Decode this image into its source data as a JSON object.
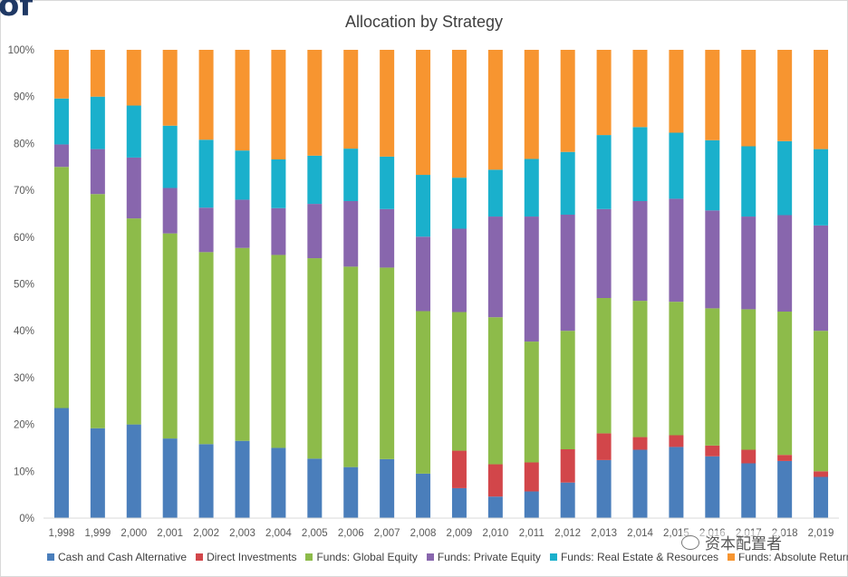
{
  "chart_data": {
    "type": "bar",
    "stacked": true,
    "title": "Allocation by Strategy",
    "categories": [
      "1,998",
      "1,999",
      "2,000",
      "2,001",
      "2,002",
      "2,003",
      "2,004",
      "2,005",
      "2,006",
      "2,007",
      "2,008",
      "2,009",
      "2,010",
      "2,011",
      "2,012",
      "2,013",
      "2,014",
      "2,015",
      "2,016",
      "2,017",
      "2,018",
      "2,019"
    ],
    "ylim": [
      0,
      100
    ],
    "yticks": [
      "0%",
      "10%",
      "20%",
      "30%",
      "40%",
      "50%",
      "60%",
      "70%",
      "80%",
      "90%",
      "100%"
    ],
    "grid": false,
    "legend_position": "bottom",
    "series": [
      {
        "name": "Cash and Cash Alternative",
        "color": "#4a7ebb",
        "values": [
          23.5,
          19.2,
          20,
          17,
          15.8,
          16.5,
          15,
          12.7,
          10.9,
          12.6,
          9.5,
          6.4,
          4.6,
          5.7,
          7.6,
          12.4,
          14.6,
          15.2,
          13.2,
          11.7,
          12.2,
          8.8
        ]
      },
      {
        "name": "Direct Investments",
        "color": "#d2464a",
        "values": [
          0,
          0,
          0,
          0,
          0,
          0,
          0,
          0,
          0,
          0,
          0,
          8,
          6.9,
          6.2,
          7.1,
          5.7,
          2.7,
          2.5,
          2.3,
          2.9,
          1.3,
          1.2
        ]
      },
      {
        "name": "Funds: Global Equity",
        "color": "#8dbb4a",
        "values": [
          51.5,
          50,
          44,
          43.8,
          41,
          41.2,
          41.2,
          42.8,
          42.8,
          40.9,
          34.7,
          29.6,
          31.4,
          25.8,
          25.3,
          28.9,
          29.1,
          28.5,
          29.3,
          30,
          30.6,
          30
        ]
      },
      {
        "name": "Funds: Private Equity",
        "color": "#8866ad",
        "values": [
          4.8,
          9.6,
          13,
          9.7,
          9.5,
          10.3,
          10,
          11.6,
          14,
          12.5,
          15.9,
          17.8,
          21.5,
          26.7,
          24.8,
          19,
          21.3,
          22,
          20.9,
          19.8,
          20.6,
          22.5
        ]
      },
      {
        "name": "Funds: Real Estate & Resources",
        "color": "#1ab0cc",
        "values": [
          9.8,
          11.2,
          11.1,
          13.3,
          14.5,
          10.5,
          10.4,
          10.3,
          11.2,
          11.2,
          13.2,
          10.9,
          10,
          12.3,
          13.4,
          15.8,
          15.8,
          14.1,
          15,
          15,
          15.8,
          16.3
        ]
      },
      {
        "name": "Funds: Absolute Return",
        "color": "#f79530",
        "values": [
          10.4,
          10,
          11.9,
          16.2,
          19.2,
          21.5,
          23.4,
          22.6,
          21.1,
          22.8,
          26.7,
          27.3,
          25.6,
          23.3,
          21.8,
          18.2,
          16.5,
          17.7,
          19.3,
          20.6,
          19.5,
          21.2
        ]
      }
    ]
  },
  "fragments": {
    "corner_text": "of",
    "watermark_text": "资本配置者"
  }
}
